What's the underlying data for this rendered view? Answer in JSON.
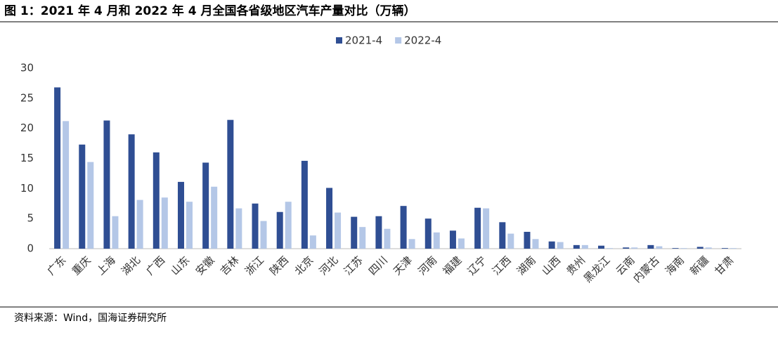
{
  "chart_data": {
    "type": "bar",
    "title": "图 1：2021 年 4 月和 2022 年 4 月全国各省级地区汽车产量对比（万辆）",
    "source": "资料来源：Wind，国海证券研究所",
    "categories": [
      "广东",
      "重庆",
      "上海",
      "湖北",
      "广西",
      "山东",
      "安徽",
      "吉林",
      "浙江",
      "陕西",
      "北京",
      "河北",
      "江苏",
      "四川",
      "天津",
      "河南",
      "福建",
      "辽宁",
      "江西",
      "湖南",
      "山西",
      "贵州",
      "黑龙江",
      "云南",
      "内蒙古",
      "海南",
      "新疆",
      "甘肃"
    ],
    "series": [
      {
        "name": "2021-4",
        "color": "#2f4e93",
        "values": [
          26.8,
          17.3,
          21.3,
          19.0,
          16.0,
          11.1,
          14.3,
          21.4,
          7.5,
          6.1,
          14.6,
          10.1,
          5.3,
          5.4,
          7.1,
          5.0,
          3.0,
          6.8,
          4.4,
          2.8,
          1.2,
          0.6,
          0.5,
          0.2,
          0.6,
          0.1,
          0.3,
          0.1
        ]
      },
      {
        "name": "2022-4",
        "color": "#b4c7e7",
        "values": [
          21.2,
          14.4,
          5.4,
          8.1,
          8.5,
          7.8,
          10.3,
          6.7,
          4.6,
          7.8,
          2.2,
          6.0,
          3.6,
          3.3,
          1.6,
          2.7,
          1.7,
          6.7,
          2.5,
          1.6,
          1.1,
          0.6,
          0.1,
          0.2,
          0.4,
          0.1,
          0.2,
          0.1
        ]
      }
    ],
    "ylim": [
      0,
      30
    ],
    "yticks": [
      0,
      5,
      10,
      15,
      20,
      25,
      30
    ],
    "grid": false,
    "legend": "top"
  }
}
